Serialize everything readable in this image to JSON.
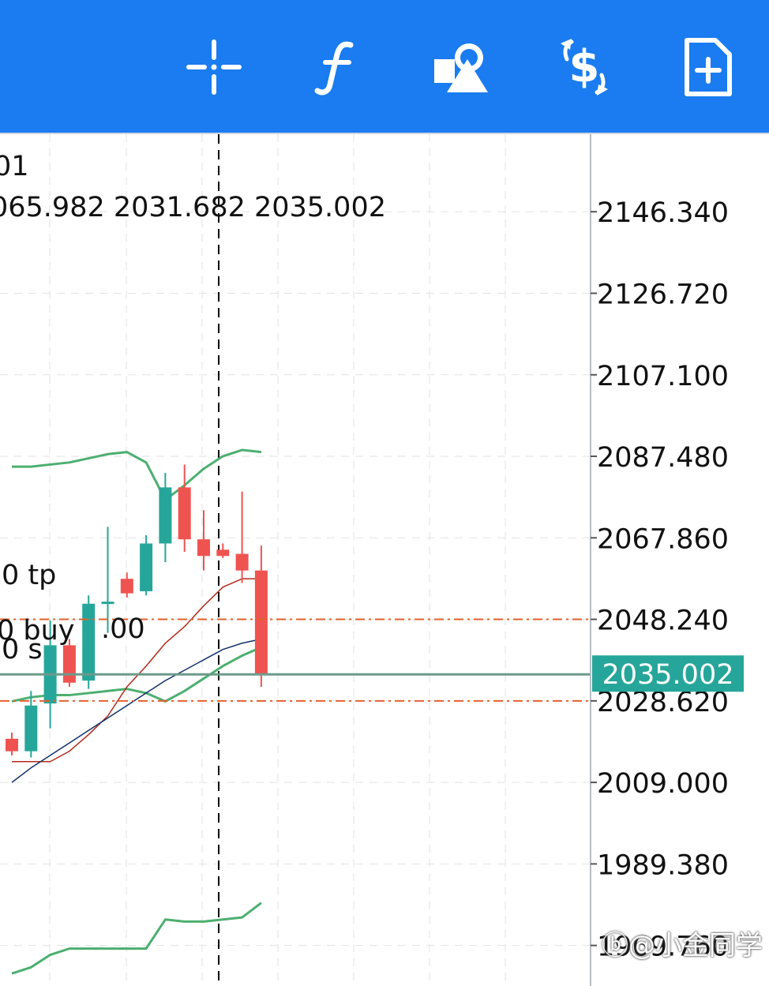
{
  "toolbar": {
    "buttons": [
      {
        "name": "crosshair",
        "icon": "crosshair-icon"
      },
      {
        "name": "indicators",
        "icon": "function-icon"
      },
      {
        "name": "objects",
        "icon": "shapes-icon"
      },
      {
        "name": "trade",
        "icon": "dollar-exchange-icon"
      },
      {
        "name": "new-order",
        "icon": "add-document-icon"
      }
    ],
    "color": "#1a7cf0"
  },
  "header": {
    "timeframe_fragment": "01",
    "ohlc_fragment": "065.982 2031.682 2035.002"
  },
  "orders": {
    "tp_label": "0 tp",
    "buy_label": "0 buy",
    "buy_volume": ".00",
    "sl_label": "0 s"
  },
  "price_axis": {
    "ticks": [
      "2146.340",
      "2126.720",
      "2107.100",
      "2087.480",
      "2067.860",
      "2048.240",
      "2028.620",
      "2009.000",
      "1989.380",
      "1969.760"
    ],
    "current_price": "2035.002",
    "current_price_color": "#26a69a"
  },
  "chart_data": {
    "type": "candlestick",
    "ylim": [
      1960.0,
      2165.0
    ],
    "bull_color": "#26a69a",
    "bear_color": "#ef5350",
    "candles": [
      {
        "o": 2019.5,
        "h": 2021.0,
        "l": 2015.5,
        "c": 2016.5
      },
      {
        "o": 2016.5,
        "h": 2031.0,
        "l": 2015.0,
        "c": 2027.5
      },
      {
        "o": 2028.0,
        "h": 2048.0,
        "l": 2022.0,
        "c": 2042.0
      },
      {
        "o": 2042.0,
        "h": 2043.5,
        "l": 2032.0,
        "c": 2033.0
      },
      {
        "o": 2033.5,
        "h": 2054.0,
        "l": 2031.5,
        "c": 2052.0
      },
      {
        "o": 2052.0,
        "h": 2070.5,
        "l": 2045.0,
        "c": 2052.5
      },
      {
        "o": 2058.0,
        "h": 2059.5,
        "l": 2053.5,
        "c": 2054.5
      },
      {
        "o": 2055.0,
        "h": 2068.5,
        "l": 2054.0,
        "c": 2066.5
      },
      {
        "o": 2066.5,
        "h": 2083.5,
        "l": 2062.0,
        "c": 2080.0
      },
      {
        "o": 2080.0,
        "h": 2085.5,
        "l": 2064.5,
        "c": 2067.5
      },
      {
        "o": 2067.5,
        "h": 2074.5,
        "l": 2060.0,
        "c": 2063.5
      },
      {
        "o": 2065.0,
        "h": 2066.5,
        "l": 2063.0,
        "c": 2063.5
      },
      {
        "o": 2064.0,
        "h": 2079.0,
        "l": 2057.0,
        "c": 2060.0
      },
      {
        "o": 2060.0,
        "h": 2066.0,
        "l": 2032.0,
        "c": 2035.0
      }
    ],
    "bollinger_upper": [
      2085.0,
      2085.0,
      2085.5,
      2086.0,
      2087.0,
      2088.0,
      2088.5,
      2086.0,
      2077.0,
      2080.5,
      2084.5,
      2087.5,
      2089.0,
      2088.5
    ],
    "bollinger_middle": [
      2028.5,
      2029.5,
      2030.0,
      2030.0,
      2030.5,
      2031.0,
      2031.5,
      2030.5,
      2028.5,
      2031.0,
      2034.0,
      2037.0,
      2039.5,
      2041.5
    ],
    "bollinger_lower": [
      1963.0,
      1964.5,
      1967.5,
      1969.0,
      1969.0,
      1969.0,
      1969.0,
      1969.0,
      1976.0,
      1975.5,
      1975.5,
      1976.0,
      1976.5,
      1980.0
    ],
    "ma_fast": [
      2014.0,
      2014.0,
      2014.0,
      2016.5,
      2020.5,
      2025.0,
      2032.0,
      2037.0,
      2042.5,
      2046.5,
      2051.5,
      2056.0,
      2058.0,
      2058.0
    ],
    "ma_slow": [
      2009.0,
      2012.5,
      2015.5,
      2018.5,
      2021.5,
      2024.5,
      2027.5,
      2030.5,
      2033.5,
      2036.0,
      2038.5,
      2041.0,
      2042.5,
      2043.5
    ],
    "tp_price": 2048.24,
    "sl_price": 2028.62,
    "buy_price": 2035.0,
    "current_price": 2035.002
  }
}
